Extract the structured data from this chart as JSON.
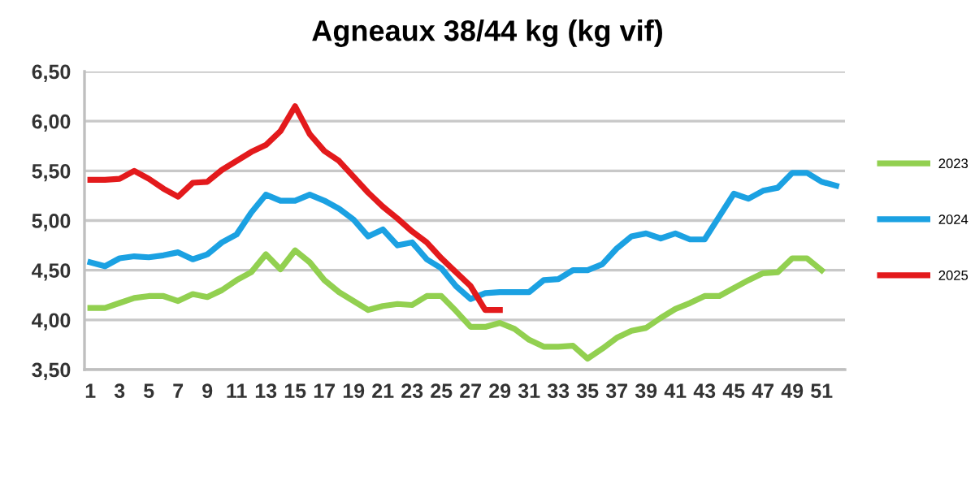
{
  "chart_data": {
    "type": "line",
    "title": "Agneaux 38/44 kg (kg vif)",
    "x": [
      1,
      2,
      3,
      4,
      5,
      6,
      7,
      8,
      9,
      10,
      11,
      12,
      13,
      14,
      15,
      16,
      17,
      18,
      19,
      20,
      21,
      22,
      23,
      24,
      25,
      26,
      27,
      28,
      29,
      30,
      31,
      32,
      33,
      34,
      35,
      36,
      37,
      38,
      39,
      40,
      41,
      42,
      43,
      44,
      45,
      46,
      47,
      48,
      49,
      50,
      51,
      52
    ],
    "series": [
      {
        "name": "2023",
        "color": "#92d050",
        "values": [
          4.12,
          4.12,
          4.17,
          4.22,
          4.24,
          4.24,
          4.19,
          4.26,
          4.23,
          4.3,
          4.4,
          4.48,
          4.66,
          4.51,
          4.7,
          4.58,
          4.4,
          4.28,
          4.19,
          4.1,
          4.14,
          4.16,
          4.15,
          4.24,
          4.24,
          4.09,
          3.93,
          3.93,
          3.97,
          3.91,
          3.8,
          3.73,
          3.73,
          3.74,
          3.61,
          3.71,
          3.82,
          3.89,
          3.92,
          4.02,
          4.11,
          4.17,
          4.24,
          4.24,
          4.32,
          4.4,
          4.47,
          4.48,
          4.62,
          4.62,
          4.5,
          null
        ]
      },
      {
        "name": "2024",
        "color": "#1ba1e2",
        "values": [
          4.58,
          4.54,
          4.62,
          4.64,
          4.63,
          4.65,
          4.68,
          4.61,
          4.66,
          4.78,
          4.86,
          5.08,
          5.26,
          5.2,
          5.2,
          5.26,
          5.2,
          5.12,
          5.01,
          4.84,
          4.91,
          4.75,
          4.78,
          4.61,
          4.52,
          4.34,
          4.21,
          4.27,
          4.28,
          4.28,
          4.28,
          4.4,
          4.41,
          4.5,
          4.5,
          4.56,
          4.72,
          4.84,
          4.87,
          4.82,
          4.87,
          4.81,
          4.81,
          5.04,
          5.27,
          5.22,
          5.3,
          5.33,
          5.48,
          5.48,
          5.39,
          5.35
        ]
      },
      {
        "name": "2025",
        "color": "#e31a1c",
        "values": [
          5.41,
          5.41,
          5.42,
          5.5,
          5.42,
          5.32,
          5.24,
          5.38,
          5.39,
          5.51,
          5.6,
          5.69,
          5.76,
          5.9,
          6.15,
          5.87,
          5.7,
          5.6,
          5.44,
          5.28,
          5.14,
          5.02,
          4.89,
          4.78,
          4.62,
          4.48,
          4.34,
          4.1,
          4.1,
          null,
          null,
          null,
          null,
          null,
          null,
          null,
          null,
          null,
          null,
          null,
          null,
          null,
          null,
          null,
          null,
          null,
          null,
          null,
          null,
          null,
          null,
          null
        ]
      }
    ],
    "xlim": [
      0.6,
      52.6
    ],
    "ylim": [
      3.5,
      6.5
    ],
    "xticks": [
      1,
      3,
      5,
      7,
      9,
      11,
      13,
      15,
      17,
      19,
      21,
      23,
      25,
      27,
      29,
      31,
      33,
      35,
      37,
      39,
      41,
      43,
      45,
      47,
      49,
      51
    ],
    "yticks": [
      {
        "value": 3.5,
        "label": "3,50"
      },
      {
        "value": 4.0,
        "label": "4,00"
      },
      {
        "value": 4.5,
        "label": "4,50"
      },
      {
        "value": 5.0,
        "label": "5,00"
      },
      {
        "value": 5.5,
        "label": "5,50"
      },
      {
        "value": 6.0,
        "label": "6,00"
      },
      {
        "value": 6.5,
        "label": "6,50"
      }
    ],
    "grid": "y",
    "legend": "right",
    "marker": "none",
    "line_style": "solid"
  }
}
